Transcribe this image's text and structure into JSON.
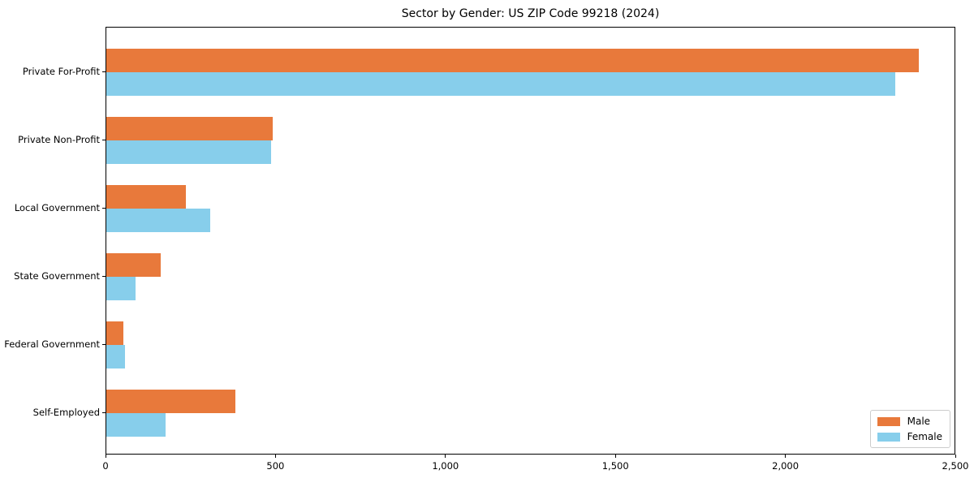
{
  "chart_data": {
    "type": "bar",
    "orientation": "horizontal",
    "title": "Sector by Gender: US ZIP Code 99218 (2024)",
    "xlabel": "",
    "ylabel": "",
    "categories": [
      "Private For-Profit",
      "Private Non-Profit",
      "Local Government",
      "State Government",
      "Federal Government",
      "Self-Employed"
    ],
    "series": [
      {
        "name": "Male",
        "color": "#E8793B",
        "values": [
          2390,
          490,
          235,
          160,
          50,
          380
        ]
      },
      {
        "name": "Female",
        "color": "#87CEEB",
        "values": [
          2320,
          485,
          305,
          85,
          55,
          175
        ]
      }
    ],
    "xlim": [
      0,
      2500
    ],
    "xticks": [
      0,
      500,
      1000,
      1500,
      2000,
      2500
    ],
    "xtick_labels": [
      "0",
      "500",
      "1,000",
      "1,500",
      "2,000",
      "2,500"
    ],
    "grid": false,
    "legend_position": "lower right",
    "background_color": "#ffffff",
    "spine_color": "#000000"
  }
}
